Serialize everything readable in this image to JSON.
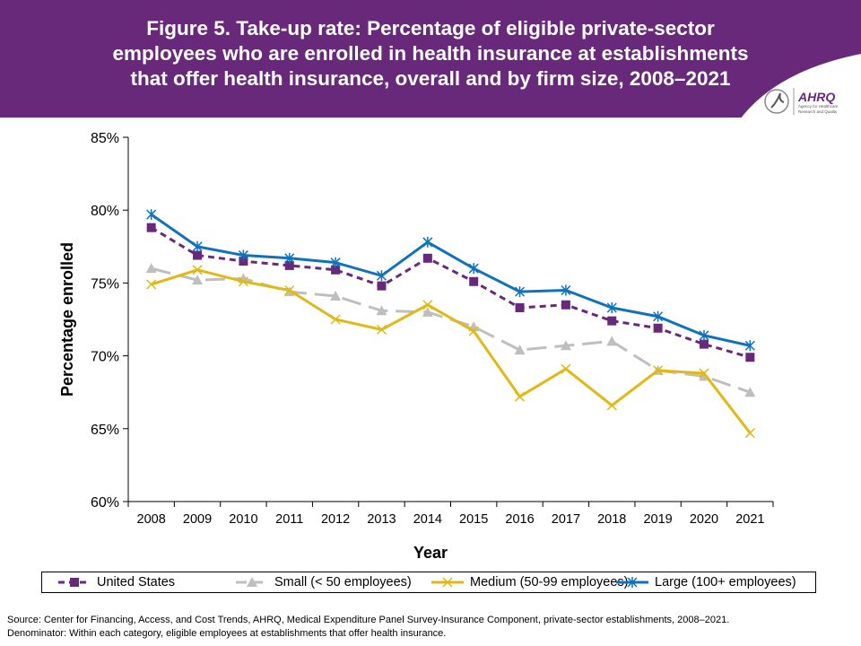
{
  "header": {
    "title_lines": [
      "Figure 5. Take-up rate: Percentage of eligible private-sector",
      "employees who are enrolled in health insurance at establishments",
      "that offer health insurance, overall and by firm size, 2008–2021"
    ],
    "logo_text": "AHRQ",
    "logo_subtext": "Agency for Healthcare Research and Quality",
    "background_color": "#68297a"
  },
  "chart_data": {
    "type": "line",
    "title": "",
    "xlabel": "Year",
    "ylabel": "Percentage enrolled",
    "ylim": [
      60,
      85
    ],
    "yticks": [
      "60%",
      "65%",
      "70%",
      "75%",
      "80%",
      "85%"
    ],
    "ytick_values": [
      60,
      65,
      70,
      75,
      80,
      85
    ],
    "grid": false,
    "legend_placement": "bottom",
    "categories": [
      "2008",
      "2009",
      "2010",
      "2011",
      "2012",
      "2013",
      "2014",
      "2015",
      "2016",
      "2017",
      "2018",
      "2019",
      "2020",
      "2021"
    ],
    "series": [
      {
        "name": "United States",
        "color": "#68297a",
        "style": "dashed",
        "marker": "square",
        "values": [
          78.8,
          76.9,
          76.5,
          76.2,
          75.9,
          74.8,
          76.7,
          75.1,
          73.3,
          73.5,
          72.4,
          71.9,
          70.8,
          69.9
        ]
      },
      {
        "name": "Small (< 50 employees)",
        "color": "#bfbfbf",
        "style": "longdash",
        "marker": "triangle",
        "values": [
          76.0,
          75.2,
          75.3,
          74.4,
          74.1,
          73.1,
          73.0,
          72.0,
          70.4,
          70.7,
          71.0,
          69.0,
          68.6,
          67.5
        ]
      },
      {
        "name": "Medium (50-99 employees)",
        "color": "#e2b814",
        "style": "solid",
        "marker": "x",
        "values": [
          74.9,
          75.9,
          75.1,
          74.5,
          72.5,
          71.8,
          73.5,
          71.7,
          67.2,
          69.1,
          66.6,
          69.0,
          68.8,
          64.7
        ]
      },
      {
        "name": "Large (100+ employees)",
        "color": "#1072ba",
        "style": "solid",
        "marker": "star",
        "values": [
          79.7,
          77.5,
          76.9,
          76.7,
          76.4,
          75.5,
          77.8,
          76.0,
          74.4,
          74.5,
          73.3,
          72.7,
          71.4,
          70.7
        ]
      }
    ]
  },
  "source": {
    "line1": "Source: Center for Financing, Access, and Cost Trends, AHRQ, Medical Expenditure Panel Survey-Insurance Component, private-sector establishments, 2008–2021.",
    "line2": "Denominator: Within each category, eligible employees at establishments that offer health insurance."
  }
}
